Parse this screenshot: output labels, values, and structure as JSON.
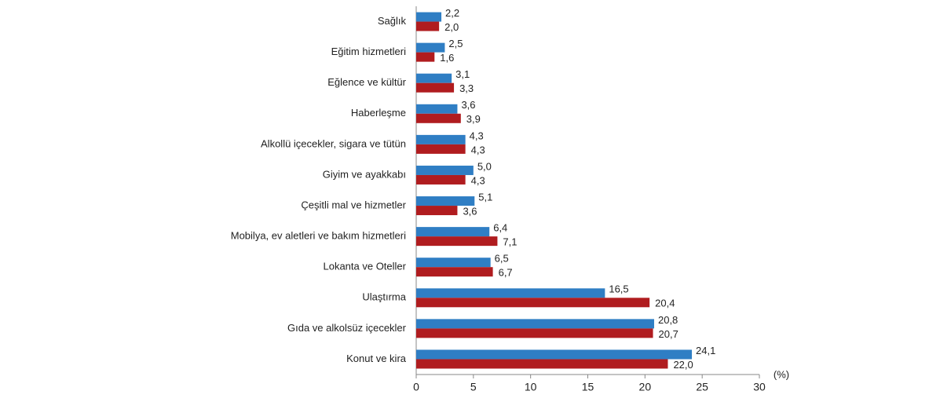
{
  "chart_data": {
    "type": "hbar",
    "x_unit_label": "(%)",
    "categories": [
      "Sağlık",
      "Eğitim hizmetleri",
      "Eğlence ve kültür",
      "Haberleşme",
      "Alkollü içecekler, sigara ve tütün",
      "Giyim ve ayakkabı",
      "Çeşitli mal ve hizmetler",
      "Mobilya, ev aletleri ve bakım hizmetleri",
      "Lokanta ve Oteller",
      "Ulaştırma",
      "Gıda ve alkolsüz içecekler",
      "Konut ve kira"
    ],
    "series": [
      {
        "color": "#2f7ec4",
        "values": [
          2.2,
          2.5,
          3.1,
          3.6,
          4.3,
          5.0,
          5.1,
          6.4,
          6.5,
          16.5,
          20.8,
          24.1
        ],
        "value_labels": [
          "2,2",
          "2,5",
          "3,1",
          "3,6",
          "4,3",
          "5,0",
          "5,1",
          "6,4",
          "6,5",
          "16,5",
          "20,8",
          "24,1"
        ]
      },
      {
        "color": "#b01c1f",
        "values": [
          2.0,
          1.6,
          3.3,
          3.9,
          4.3,
          4.3,
          3.6,
          7.1,
          6.7,
          20.4,
          20.7,
          22.0
        ],
        "value_labels": [
          "2,0",
          "1,6",
          "3,3",
          "3,9",
          "4,3",
          "4,3",
          "3,6",
          "7,1",
          "6,7",
          "20,4",
          "20,7",
          "22,0"
        ]
      }
    ],
    "xlim": [
      0,
      30
    ],
    "xticks": [
      0,
      5,
      10,
      15,
      20,
      25,
      30
    ],
    "grid": false
  }
}
